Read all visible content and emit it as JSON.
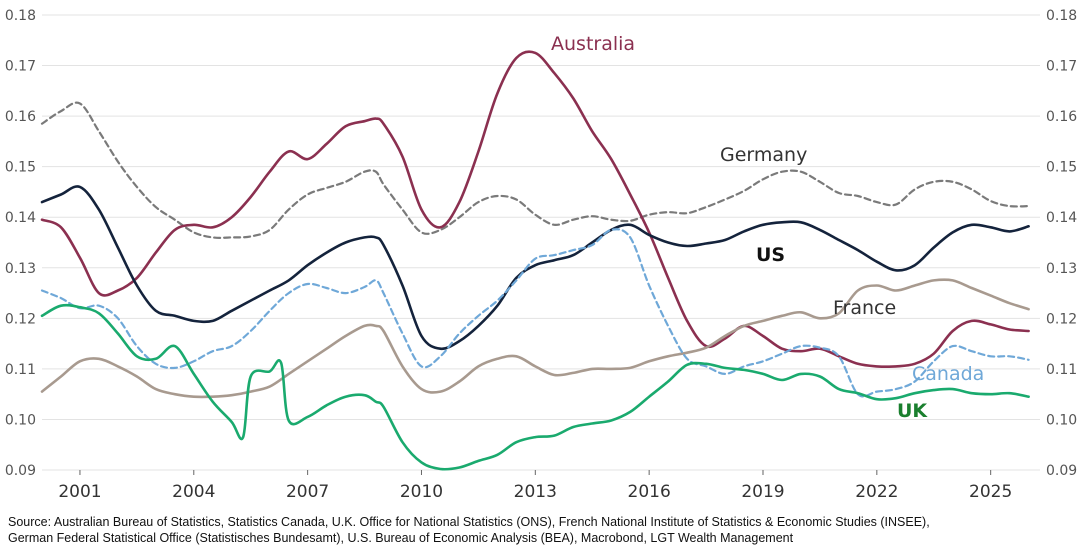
{
  "chart_data": {
    "type": "line",
    "title": "",
    "xlabel": "",
    "ylabel": "",
    "xlim": [
      2000.0,
      2026.3
    ],
    "ylim": [
      0.09,
      0.18
    ],
    "yticks": [
      "0.09",
      "0.10",
      "0.11",
      "0.12",
      "0.13",
      "0.14",
      "0.15",
      "0.16",
      "0.17",
      "0.18"
    ],
    "xticks": [
      "2001",
      "2004",
      "2007",
      "2010",
      "2013",
      "2016",
      "2019",
      "2022",
      "2025"
    ],
    "series": [
      {
        "name": "Germany",
        "color": "#7a7a7a",
        "dashed": true,
        "label_color": "#333333",
        "x": [
          2000,
          2000.5,
          2001,
          2001.5,
          2002,
          2002.5,
          2003,
          2003.5,
          2004,
          2004.5,
          2005,
          2005.5,
          2006,
          2006.5,
          2007,
          2007.5,
          2008,
          2008.5,
          2008.8,
          2009,
          2009.5,
          2010,
          2010.5,
          2011,
          2011.5,
          2012,
          2012.5,
          2013,
          2013.5,
          2014,
          2014.5,
          2015,
          2015.5,
          2016,
          2016.5,
          2017,
          2017.5,
          2018,
          2018.5,
          2019,
          2019.5,
          2020,
          2020.5,
          2021,
          2021.5,
          2022,
          2022.5,
          2023,
          2023.5,
          2024,
          2024.5,
          2025,
          2025.5,
          2026
        ],
        "y": [
          0.1585,
          0.161,
          0.1625,
          0.157,
          0.151,
          0.146,
          0.142,
          0.1395,
          0.137,
          0.136,
          0.136,
          0.1362,
          0.1375,
          0.1415,
          0.1445,
          0.1458,
          0.147,
          0.149,
          0.149,
          0.1465,
          0.1415,
          0.137,
          0.1375,
          0.14,
          0.143,
          0.1442,
          0.1435,
          0.1405,
          0.1385,
          0.1395,
          0.1402,
          0.1395,
          0.1393,
          0.1405,
          0.141,
          0.1408,
          0.142,
          0.1435,
          0.1452,
          0.1475,
          0.149,
          0.149,
          0.147,
          0.1448,
          0.1442,
          0.143,
          0.1425,
          0.1455,
          0.147,
          0.147,
          0.1455,
          0.1432,
          0.1422,
          0.1422
        ]
      },
      {
        "name": "Australia",
        "color": "#8b3050",
        "dashed": false,
        "label_color": "#8b3050",
        "x": [
          2000,
          2000.5,
          2001,
          2001.5,
          2002,
          2002.5,
          2003,
          2003.5,
          2004,
          2004.5,
          2005,
          2005.5,
          2006,
          2006.5,
          2007,
          2007.5,
          2008,
          2008.5,
          2008.8,
          2009,
          2009.5,
          2010,
          2010.5,
          2011,
          2011.5,
          2012,
          2012.5,
          2013,
          2013.5,
          2014,
          2014.5,
          2015,
          2015.5,
          2016,
          2016.5,
          2017,
          2017.5,
          2018,
          2018.5,
          2019,
          2019.5,
          2020,
          2020.5,
          2021,
          2021.5,
          2022,
          2022.5,
          2023,
          2023.5,
          2024,
          2024.5,
          2025,
          2025.5,
          2026
        ],
        "y": [
          0.1395,
          0.138,
          0.132,
          0.125,
          0.1255,
          0.128,
          0.133,
          0.1375,
          0.1385,
          0.138,
          0.14,
          0.144,
          0.149,
          0.153,
          0.1515,
          0.1545,
          0.158,
          0.159,
          0.1595,
          0.1585,
          0.152,
          0.1415,
          0.138,
          0.143,
          0.153,
          0.1645,
          0.1715,
          0.1725,
          0.1685,
          0.1635,
          0.157,
          0.1515,
          0.1445,
          0.137,
          0.128,
          0.1195,
          0.1145,
          0.116,
          0.1185,
          0.1165,
          0.114,
          0.1135,
          0.114,
          0.1125,
          0.111,
          0.1105,
          0.1105,
          0.111,
          0.113,
          0.1175,
          0.1195,
          0.1188,
          0.1178,
          0.1175
        ]
      },
      {
        "name": "US",
        "color": "#14233c",
        "dashed": false,
        "label_color": "#111111",
        "x": [
          2000,
          2000.5,
          2001,
          2001.5,
          2002,
          2002.5,
          2003,
          2003.5,
          2004,
          2004.5,
          2005,
          2005.5,
          2006,
          2006.5,
          2007,
          2007.5,
          2008,
          2008.5,
          2008.8,
          2009,
          2009.5,
          2010,
          2010.5,
          2011,
          2011.5,
          2012,
          2012.5,
          2013,
          2013.5,
          2014,
          2014.5,
          2015,
          2015.5,
          2016,
          2016.5,
          2017,
          2017.5,
          2018,
          2018.5,
          2019,
          2019.5,
          2020,
          2020.5,
          2021,
          2021.5,
          2022,
          2022.5,
          2023,
          2023.5,
          2024,
          2024.5,
          2025,
          2025.5,
          2026
        ],
        "y": [
          0.143,
          0.1445,
          0.146,
          0.1415,
          0.134,
          0.1265,
          0.1215,
          0.1205,
          0.1195,
          0.1195,
          0.1215,
          0.1235,
          0.1255,
          0.1275,
          0.1305,
          0.133,
          0.135,
          0.136,
          0.136,
          0.1345,
          0.1265,
          0.1165,
          0.114,
          0.1155,
          0.1185,
          0.1225,
          0.128,
          0.1305,
          0.1315,
          0.1325,
          0.135,
          0.1375,
          0.1385,
          0.1365,
          0.135,
          0.1343,
          0.1348,
          0.1355,
          0.1372,
          0.1385,
          0.139,
          0.139,
          0.1375,
          0.1355,
          0.1335,
          0.1312,
          0.1295,
          0.1305,
          0.134,
          0.137,
          0.1385,
          0.138,
          0.1372,
          0.1382
        ]
      },
      {
        "name": "France",
        "color": "#a89a8f",
        "dashed": false,
        "label_color": "#333333",
        "x": [
          2000,
          2000.5,
          2001,
          2001.5,
          2002,
          2002.5,
          2003,
          2003.5,
          2004,
          2004.5,
          2005,
          2005.5,
          2006,
          2006.5,
          2007,
          2007.5,
          2008,
          2008.5,
          2008.8,
          2009,
          2009.5,
          2010,
          2010.5,
          2011,
          2011.5,
          2012,
          2012.5,
          2013,
          2013.5,
          2014,
          2014.5,
          2015,
          2015.5,
          2016,
          2016.5,
          2017,
          2017.5,
          2018,
          2018.5,
          2019,
          2019.5,
          2020,
          2020.5,
          2021,
          2021.5,
          2022,
          2022.5,
          2023,
          2023.5,
          2024,
          2024.5,
          2025,
          2025.5,
          2026
        ],
        "y": [
          0.1055,
          0.1085,
          0.1115,
          0.112,
          0.1105,
          0.1085,
          0.106,
          0.105,
          0.1045,
          0.1045,
          0.1048,
          0.1055,
          0.1065,
          0.109,
          0.1115,
          0.114,
          0.1165,
          0.1185,
          0.1185,
          0.1175,
          0.1105,
          0.106,
          0.1055,
          0.1075,
          0.1105,
          0.112,
          0.1125,
          0.1105,
          0.1088,
          0.1092,
          0.11,
          0.11,
          0.1102,
          0.1115,
          0.1125,
          0.1132,
          0.1142,
          0.1165,
          0.1185,
          0.1195,
          0.1205,
          0.1212,
          0.12,
          0.121,
          0.1255,
          0.1265,
          0.1255,
          0.1265,
          0.1275,
          0.1275,
          0.126,
          0.1245,
          0.123,
          0.1218
        ]
      },
      {
        "name": "Canada",
        "color": "#6fa8d8",
        "dashed": true,
        "label_color": "#6fa8d8",
        "x": [
          2000,
          2000.5,
          2001,
          2001.5,
          2002,
          2002.5,
          2003,
          2003.5,
          2004,
          2004.5,
          2005,
          2005.5,
          2006,
          2006.5,
          2007,
          2007.5,
          2008,
          2008.5,
          2008.8,
          2009,
          2009.5,
          2010,
          2010.5,
          2011,
          2011.5,
          2012,
          2012.5,
          2013,
          2013.5,
          2014,
          2014.5,
          2015,
          2015.5,
          2016,
          2016.5,
          2017,
          2017.5,
          2018,
          2018.5,
          2019,
          2019.5,
          2020,
          2020.5,
          2021,
          2021.5,
          2022,
          2022.5,
          2023,
          2023.5,
          2024,
          2024.5,
          2025,
          2025.5,
          2026
        ],
        "y": [
          0.1255,
          0.124,
          0.122,
          0.1225,
          0.12,
          0.1145,
          0.111,
          0.1102,
          0.1115,
          0.1135,
          0.1145,
          0.1175,
          0.1215,
          0.125,
          0.1268,
          0.126,
          0.125,
          0.1262,
          0.1275,
          0.125,
          0.117,
          0.1105,
          0.1125,
          0.117,
          0.1205,
          0.1235,
          0.1275,
          0.1318,
          0.1325,
          0.1335,
          0.1345,
          0.1375,
          0.136,
          0.1265,
          0.1185,
          0.112,
          0.1105,
          0.109,
          0.1105,
          0.1115,
          0.113,
          0.1145,
          0.1142,
          0.1125,
          0.105,
          0.1055,
          0.106,
          0.1075,
          0.1115,
          0.1145,
          0.1135,
          0.1125,
          0.1125,
          0.1118
        ]
      },
      {
        "name": "UK",
        "color": "#1aaa6e",
        "dashed": false,
        "label_color": "#1a7f2e",
        "x": [
          2000,
          2000.5,
          2001,
          2001.5,
          2002,
          2002.5,
          2003,
          2003.5,
          2004,
          2004.5,
          2005,
          2005.3,
          2005.5,
          2006,
          2006.3,
          2006.5,
          2007,
          2007.5,
          2008,
          2008.5,
          2008.8,
          2009,
          2009.5,
          2010,
          2010.5,
          2011,
          2011.5,
          2012,
          2012.5,
          2013,
          2013.5,
          2014,
          2014.5,
          2015,
          2015.5,
          2016,
          2016.5,
          2017,
          2017.5,
          2018,
          2018.5,
          2019,
          2019.5,
          2020,
          2020.5,
          2021,
          2021.5,
          2022,
          2022.5,
          2023,
          2023.5,
          2024,
          2024.5,
          2025,
          2025.5,
          2026
        ],
        "y": [
          0.1205,
          0.1225,
          0.1222,
          0.121,
          0.117,
          0.1125,
          0.112,
          0.1145,
          0.109,
          0.1035,
          0.0995,
          0.0965,
          0.1085,
          0.1095,
          0.1112,
          0.0998,
          0.1005,
          0.1028,
          0.1045,
          0.1048,
          0.1035,
          0.1025,
          0.0955,
          0.0915,
          0.0902,
          0.0905,
          0.0918,
          0.093,
          0.0955,
          0.0965,
          0.0968,
          0.0985,
          0.0992,
          0.0998,
          0.1015,
          0.1045,
          0.1075,
          0.1108,
          0.111,
          0.1102,
          0.1098,
          0.109,
          0.1078,
          0.109,
          0.1085,
          0.106,
          0.1052,
          0.104,
          0.1042,
          0.1052,
          0.1058,
          0.106,
          0.1052,
          0.105,
          0.1052,
          0.1045
        ]
      }
    ],
    "labels": {
      "germany": "Germany",
      "australia": "Australia",
      "us": "US",
      "france": "France",
      "canada": "Canada",
      "uk": "UK"
    },
    "source_line1": "Source: Australian Bureau of Statistics, Statistics Canada, U.K. Office for National Statistics (ONS), French National Institute of Statistics & Economic Studies (INSEE),",
    "source_line2": "German Federal Statistical Office (Statistisches Bundesamt), U.S. Bureau of Economic Analysis (BEA), Macrobond, LGT Wealth Management"
  }
}
